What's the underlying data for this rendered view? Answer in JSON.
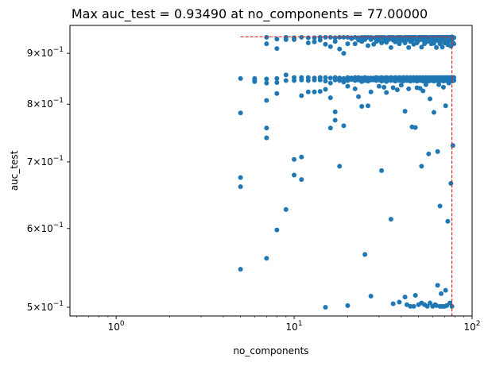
{
  "chart_data": {
    "type": "scatter",
    "title": "Max auc_test = 0.93490 at no_components = 77.00000",
    "xlabel": "no_components",
    "ylabel": "auc_test",
    "xscale": "log",
    "yscale": "log",
    "xlim": [
      0.55,
      100
    ],
    "ylim": [
      0.49,
      0.96
    ],
    "grid": false,
    "point_color": "#1f77b4",
    "marker_line_color": "#d62728",
    "max_point": {
      "x": 77,
      "y": 0.9349
    },
    "x_ticks": [
      {
        "value": 1,
        "base": "10",
        "exp": "0"
      },
      {
        "value": 10,
        "base": "10",
        "exp": "1"
      },
      {
        "value": 100,
        "base": "10",
        "exp": "2"
      }
    ],
    "y_ticks": [
      {
        "value": 0.5,
        "mant": "5",
        "exp": "−1"
      },
      {
        "value": 0.6,
        "mant": "6",
        "exp": "−1"
      },
      {
        "value": 0.7,
        "mant": "7",
        "exp": "−1"
      },
      {
        "value": 0.8,
        "mant": "8",
        "exp": "−1"
      },
      {
        "value": 0.9,
        "mant": "9",
        "exp": "−1"
      }
    ],
    "points": [
      [
        5,
        0.849
      ],
      [
        5,
        0.784
      ],
      [
        5,
        0.675
      ],
      [
        5,
        0.661
      ],
      [
        5,
        0.546
      ],
      [
        6,
        0.849
      ],
      [
        6,
        0.845
      ],
      [
        6,
        0.843
      ],
      [
        7,
        0.934
      ],
      [
        7,
        0.92
      ],
      [
        7,
        0.848
      ],
      [
        7,
        0.84
      ],
      [
        7,
        0.807
      ],
      [
        7,
        0.757
      ],
      [
        7,
        0.74
      ],
      [
        7,
        0.56
      ],
      [
        8,
        0.93
      ],
      [
        8,
        0.91
      ],
      [
        8,
        0.849
      ],
      [
        8,
        0.841
      ],
      [
        8,
        0.82
      ],
      [
        8,
        0.598
      ],
      [
        9,
        0.934
      ],
      [
        9,
        0.929
      ],
      [
        9,
        0.856
      ],
      [
        9,
        0.845
      ],
      [
        9,
        0.627
      ],
      [
        10,
        0.933
      ],
      [
        10,
        0.929
      ],
      [
        10,
        0.851
      ],
      [
        10,
        0.845
      ],
      [
        10,
        0.704
      ],
      [
        10,
        0.679
      ],
      [
        11,
        0.934
      ],
      [
        11,
        0.851
      ],
      [
        11,
        0.846
      ],
      [
        11,
        0.816
      ],
      [
        11,
        0.708
      ],
      [
        11,
        0.672
      ],
      [
        12,
        0.933
      ],
      [
        12,
        0.922
      ],
      [
        12,
        0.851
      ],
      [
        12,
        0.845
      ],
      [
        12,
        0.823
      ],
      [
        13,
        0.933
      ],
      [
        13,
        0.924
      ],
      [
        13,
        0.85
      ],
      [
        13,
        0.846
      ],
      [
        13,
        0.823
      ],
      [
        14,
        0.934
      ],
      [
        14,
        0.928
      ],
      [
        14,
        0.851
      ],
      [
        14,
        0.846
      ],
      [
        14,
        0.824
      ],
      [
        15,
        0.934
      ],
      [
        15,
        0.919
      ],
      [
        15,
        0.851
      ],
      [
        15,
        0.844
      ],
      [
        15,
        0.828
      ],
      [
        15,
        0.5
      ],
      [
        16,
        0.934
      ],
      [
        16,
        0.914
      ],
      [
        16,
        0.85
      ],
      [
        16,
        0.84
      ],
      [
        16,
        0.812
      ],
      [
        16,
        0.757
      ],
      [
        17,
        0.933
      ],
      [
        17,
        0.925
      ],
      [
        17,
        0.851
      ],
      [
        17,
        0.846
      ],
      [
        17,
        0.786
      ],
      [
        17,
        0.771
      ],
      [
        18,
        0.934
      ],
      [
        18,
        0.909
      ],
      [
        18,
        0.85
      ],
      [
        18,
        0.845
      ],
      [
        18,
        0.693
      ],
      [
        19,
        0.934
      ],
      [
        19,
        0.9
      ],
      [
        19,
        0.849
      ],
      [
        19,
        0.842
      ],
      [
        19,
        0.761
      ],
      [
        20,
        0.934
      ],
      [
        20,
        0.92
      ],
      [
        20,
        0.851
      ],
      [
        20,
        0.845
      ],
      [
        20,
        0.834
      ],
      [
        20,
        0.502
      ],
      [
        21,
        0.933
      ],
      [
        21,
        0.931
      ],
      [
        21,
        0.85
      ],
      [
        21,
        0.847
      ],
      [
        22,
        0.934
      ],
      [
        22,
        0.92
      ],
      [
        22,
        0.851
      ],
      [
        22,
        0.845
      ],
      [
        22,
        0.829
      ],
      [
        23,
        0.933
      ],
      [
        23,
        0.928
      ],
      [
        23,
        0.851
      ],
      [
        23,
        0.846
      ],
      [
        23,
        0.814
      ],
      [
        24,
        0.934
      ],
      [
        24,
        0.925
      ],
      [
        24,
        0.85
      ],
      [
        24,
        0.843
      ],
      [
        24,
        0.796
      ],
      [
        25,
        0.934
      ],
      [
        25,
        0.929
      ],
      [
        25,
        0.851
      ],
      [
        25,
        0.845
      ],
      [
        25,
        0.565
      ],
      [
        26,
        0.934
      ],
      [
        26,
        0.916
      ],
      [
        26,
        0.85
      ],
      [
        26,
        0.844
      ],
      [
        26,
        0.797
      ],
      [
        27,
        0.934
      ],
      [
        27,
        0.929
      ],
      [
        27,
        0.85
      ],
      [
        27,
        0.846
      ],
      [
        27,
        0.823
      ],
      [
        27,
        0.513
      ],
      [
        28,
        0.933
      ],
      [
        28,
        0.919
      ],
      [
        28,
        0.85
      ],
      [
        28,
        0.846
      ],
      [
        29,
        0.934
      ],
      [
        29,
        0.925
      ],
      [
        29,
        0.851
      ],
      [
        29,
        0.845
      ],
      [
        30,
        0.934
      ],
      [
        30,
        0.928
      ],
      [
        30,
        0.85
      ],
      [
        30,
        0.846
      ],
      [
        30,
        0.834
      ],
      [
        31,
        0.934
      ],
      [
        31,
        0.922
      ],
      [
        31,
        0.851
      ],
      [
        31,
        0.844
      ],
      [
        31,
        0.686
      ],
      [
        32,
        0.934
      ],
      [
        32,
        0.927
      ],
      [
        32,
        0.85
      ],
      [
        32,
        0.846
      ],
      [
        32,
        0.832
      ],
      [
        33,
        0.933
      ],
      [
        33,
        0.923
      ],
      [
        33,
        0.851
      ],
      [
        33,
        0.843
      ],
      [
        33,
        0.822
      ],
      [
        34,
        0.934
      ],
      [
        34,
        0.929
      ],
      [
        34,
        0.85
      ],
      [
        34,
        0.846
      ],
      [
        35,
        0.934
      ],
      [
        35,
        0.912
      ],
      [
        35,
        0.851
      ],
      [
        35,
        0.845
      ],
      [
        35,
        0.613
      ],
      [
        36,
        0.934
      ],
      [
        36,
        0.928
      ],
      [
        36,
        0.85
      ],
      [
        36,
        0.846
      ],
      [
        36,
        0.831
      ],
      [
        36,
        0.504
      ],
      [
        37,
        0.933
      ],
      [
        37,
        0.924
      ],
      [
        37,
        0.851
      ],
      [
        37,
        0.844
      ],
      [
        38,
        0.934
      ],
      [
        38,
        0.929
      ],
      [
        38,
        0.85
      ],
      [
        38,
        0.846
      ],
      [
        38,
        0.827
      ],
      [
        39,
        0.934
      ],
      [
        39,
        0.92
      ],
      [
        39,
        0.851
      ],
      [
        39,
        0.845
      ],
      [
        39,
        0.506
      ],
      [
        40,
        0.934
      ],
      [
        40,
        0.927
      ],
      [
        40,
        0.85
      ],
      [
        40,
        0.846
      ],
      [
        40,
        0.836
      ],
      [
        41,
        0.933
      ],
      [
        41,
        0.929
      ],
      [
        41,
        0.851
      ],
      [
        41,
        0.844
      ],
      [
        42,
        0.934
      ],
      [
        42,
        0.922
      ],
      [
        42,
        0.85
      ],
      [
        42,
        0.846
      ],
      [
        42,
        0.787
      ],
      [
        42,
        0.512
      ],
      [
        43,
        0.934
      ],
      [
        43,
        0.929
      ],
      [
        43,
        0.851
      ],
      [
        43,
        0.845
      ],
      [
        43,
        0.503
      ],
      [
        44,
        0.934
      ],
      [
        44,
        0.912
      ],
      [
        44,
        0.85
      ],
      [
        44,
        0.846
      ],
      [
        44,
        0.829
      ],
      [
        45,
        0.934
      ],
      [
        45,
        0.925
      ],
      [
        45,
        0.851
      ],
      [
        45,
        0.844
      ],
      [
        45,
        0.501
      ],
      [
        46,
        0.934
      ],
      [
        46,
        0.928
      ],
      [
        46,
        0.85
      ],
      [
        46,
        0.846
      ],
      [
        46,
        0.759
      ],
      [
        47,
        0.934
      ],
      [
        47,
        0.919
      ],
      [
        47,
        0.851
      ],
      [
        47,
        0.845
      ],
      [
        47,
        0.501
      ],
      [
        48,
        0.934
      ],
      [
        48,
        0.929
      ],
      [
        48,
        0.85
      ],
      [
        48,
        0.846
      ],
      [
        48,
        0.758
      ],
      [
        48,
        0.514
      ],
      [
        49,
        0.933
      ],
      [
        49,
        0.922
      ],
      [
        49,
        0.851
      ],
      [
        49,
        0.844
      ],
      [
        49,
        0.831
      ],
      [
        50,
        0.934
      ],
      [
        50,
        0.927
      ],
      [
        50,
        0.85
      ],
      [
        50,
        0.846
      ],
      [
        50,
        0.503
      ],
      [
        51,
        0.934
      ],
      [
        51,
        0.929
      ],
      [
        51,
        0.851
      ],
      [
        51,
        0.845
      ],
      [
        51,
        0.83
      ],
      [
        52,
        0.934
      ],
      [
        52,
        0.913
      ],
      [
        52,
        0.85
      ],
      [
        52,
        0.846
      ],
      [
        52,
        0.693
      ],
      [
        52,
        0.505
      ],
      [
        53,
        0.934
      ],
      [
        53,
        0.928
      ],
      [
        53,
        0.851
      ],
      [
        53,
        0.844
      ],
      [
        53,
        0.825
      ],
      [
        54,
        0.934
      ],
      [
        54,
        0.92
      ],
      [
        54,
        0.85
      ],
      [
        54,
        0.846
      ],
      [
        54,
        0.503
      ],
      [
        55,
        0.934
      ],
      [
        55,
        0.929
      ],
      [
        55,
        0.851
      ],
      [
        55,
        0.845
      ],
      [
        55,
        0.837
      ],
      [
        56,
        0.934
      ],
      [
        56,
        0.925
      ],
      [
        56,
        0.85
      ],
      [
        56,
        0.846
      ],
      [
        56,
        0.501
      ],
      [
        57,
        0.933
      ],
      [
        57,
        0.927
      ],
      [
        57,
        0.851
      ],
      [
        57,
        0.844
      ],
      [
        57,
        0.713
      ],
      [
        58,
        0.934
      ],
      [
        58,
        0.929
      ],
      [
        58,
        0.85
      ],
      [
        58,
        0.846
      ],
      [
        58,
        0.81
      ],
      [
        58,
        0.505
      ],
      [
        59,
        0.934
      ],
      [
        59,
        0.92
      ],
      [
        59,
        0.851
      ],
      [
        59,
        0.845
      ],
      [
        60,
        0.934
      ],
      [
        60,
        0.928
      ],
      [
        60,
        0.85
      ],
      [
        60,
        0.846
      ],
      [
        60,
        0.501
      ],
      [
        61,
        0.934
      ],
      [
        61,
        0.921
      ],
      [
        61,
        0.851
      ],
      [
        61,
        0.844
      ],
      [
        61,
        0.785
      ],
      [
        62,
        0.934
      ],
      [
        62,
        0.929
      ],
      [
        62,
        0.85
      ],
      [
        62,
        0.846
      ],
      [
        62,
        0.503
      ],
      [
        63,
        0.934
      ],
      [
        63,
        0.912
      ],
      [
        63,
        0.851
      ],
      [
        63,
        0.845
      ],
      [
        63,
        0.502
      ],
      [
        64,
        0.934
      ],
      [
        64,
        0.927
      ],
      [
        64,
        0.85
      ],
      [
        64,
        0.846
      ],
      [
        64,
        0.717
      ],
      [
        64,
        0.526
      ],
      [
        65,
        0.934
      ],
      [
        65,
        0.929
      ],
      [
        65,
        0.851
      ],
      [
        65,
        0.844
      ],
      [
        65,
        0.837
      ],
      [
        66,
        0.934
      ],
      [
        66,
        0.92
      ],
      [
        66,
        0.85
      ],
      [
        66,
        0.846
      ],
      [
        66,
        0.632
      ],
      [
        66,
        0.501
      ],
      [
        67,
        0.934
      ],
      [
        67,
        0.928
      ],
      [
        67,
        0.851
      ],
      [
        67,
        0.845
      ],
      [
        67,
        0.516
      ],
      [
        68,
        0.934
      ],
      [
        68,
        0.913
      ],
      [
        68,
        0.85
      ],
      [
        68,
        0.846
      ],
      [
        68,
        0.501
      ],
      [
        69,
        0.934
      ],
      [
        69,
        0.929
      ],
      [
        69,
        0.851
      ],
      [
        69,
        0.844
      ],
      [
        69,
        0.832
      ],
      [
        70,
        0.934
      ],
      [
        70,
        0.922
      ],
      [
        70,
        0.85
      ],
      [
        70,
        0.846
      ],
      [
        70,
        0.501
      ],
      [
        71,
        0.934
      ],
      [
        71,
        0.927
      ],
      [
        71,
        0.851
      ],
      [
        71,
        0.845
      ],
      [
        71,
        0.797
      ],
      [
        71,
        0.52
      ],
      [
        72,
        0.934
      ],
      [
        72,
        0.929
      ],
      [
        72,
        0.85
      ],
      [
        72,
        0.846
      ],
      [
        72,
        0.502
      ],
      [
        73,
        0.934
      ],
      [
        73,
        0.918
      ],
      [
        73,
        0.851
      ],
      [
        73,
        0.844
      ],
      [
        73,
        0.61
      ],
      [
        74,
        0.934
      ],
      [
        74,
        0.925
      ],
      [
        74,
        0.85
      ],
      [
        74,
        0.846
      ],
      [
        74,
        0.84
      ],
      [
        75,
        0.934
      ],
      [
        75,
        0.928
      ],
      [
        75,
        0.851
      ],
      [
        75,
        0.845
      ],
      [
        75,
        0.505
      ],
      [
        76,
        0.934
      ],
      [
        76,
        0.915
      ],
      [
        76,
        0.85
      ],
      [
        76,
        0.846
      ],
      [
        76,
        0.666
      ],
      [
        77,
        0.9349
      ],
      [
        77,
        0.929
      ],
      [
        77,
        0.851
      ],
      [
        77,
        0.844
      ],
      [
        77,
        0.501
      ],
      [
        78,
        0.934
      ],
      [
        78,
        0.922
      ],
      [
        78,
        0.85
      ],
      [
        78,
        0.846
      ],
      [
        78,
        0.727
      ],
      [
        79,
        0.933
      ],
      [
        79,
        0.92
      ],
      [
        79,
        0.851
      ],
      [
        79,
        0.845
      ]
    ]
  }
}
